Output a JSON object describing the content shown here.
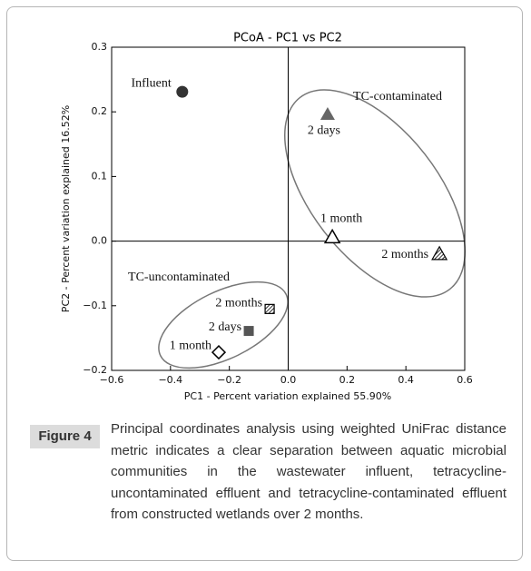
{
  "chart_data": {
    "type": "scatter",
    "title": "PCoA - PC1 vs PC2",
    "x_label": "PC1 - Percent variation explained 55.90%",
    "y_label": "PC2 - Percent variation explained 16.52%",
    "xlim": [
      -0.6,
      0.6
    ],
    "xticks": [
      {
        "value": -0.6,
        "label": "−0.6"
      },
      {
        "value": -0.4,
        "label": "−0.4"
      },
      {
        "value": -0.2,
        "label": "−0.2"
      },
      {
        "value": 0,
        "label": "0.0"
      },
      0.2,
      0.4,
      0.6
    ],
    "ylim": [
      -0.2,
      0.3
    ],
    "yticks": [
      {
        "value": -0.2,
        "label": "−0.2"
      },
      {
        "value": -0.1,
        "label": "−0.1"
      },
      {
        "value": 0,
        "label": "0.0"
      },
      0.1,
      0.2,
      0.3
    ],
    "zero_lines": true,
    "annotations": [
      "TC-contaminated",
      "TC-uncontaminated"
    ],
    "points": [
      {
        "label": "Influent",
        "x": -0.36,
        "y": 0.231,
        "marker": "circle",
        "color": "#333333"
      },
      {
        "label": "2 days",
        "x": 0.134,
        "y": 0.196,
        "marker": "triangle",
        "color": "#666666"
      },
      {
        "label": "1 month",
        "x": 0.15,
        "y": 0.006,
        "marker": "triangle-open",
        "color": "#000000"
      },
      {
        "label": "2 months",
        "x": 0.514,
        "y": -0.02,
        "marker": "triangle-hatched",
        "color": "#000000"
      },
      {
        "label": "2 months",
        "x": -0.063,
        "y": -0.105,
        "marker": "square-hatched",
        "color": "#000000"
      },
      {
        "label": "2 days",
        "x": -0.134,
        "y": -0.139,
        "marker": "square",
        "color": "#555555"
      },
      {
        "label": "1 month",
        "x": -0.236,
        "y": -0.172,
        "marker": "diamond-open",
        "color": "#000000"
      }
    ]
  },
  "figure_label": "Figure 4",
  "caption": "Principal coordinates analysis using weighted UniFrac distance metric indicates a clear separation between aquatic microbial communities in the wastewater influent, tetracycline-uncontaminated effluent and tetracycline-contaminated effluent from constructed wetlands over 2 months."
}
